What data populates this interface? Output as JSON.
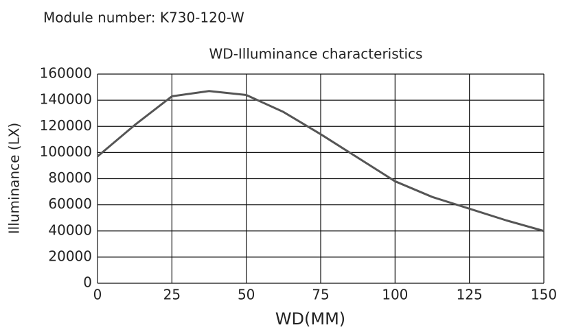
{
  "header": {
    "module_number": "Module number: K730-120-W"
  },
  "chart_data": {
    "type": "line",
    "title": "WD-Illuminance characteristics",
    "x_label": "WD(MM)",
    "y_label": "Illuminance (LX)",
    "x": [
      0,
      12.5,
      25,
      37.5,
      50,
      62.5,
      75,
      87.5,
      100,
      112.5,
      125,
      137.5,
      150
    ],
    "series": [
      {
        "name": "Illuminance",
        "color": "#555555",
        "values": [
          97000,
          121000,
          143000,
          147000,
          144000,
          131000,
          114000,
          96000,
          78000,
          66000,
          57000,
          48000,
          40000
        ]
      }
    ],
    "xlim": [
      0,
      150
    ],
    "xticks": [
      0,
      25,
      50,
      75,
      100,
      125,
      150
    ],
    "ylim": [
      0,
      160000
    ],
    "yticks": [
      0,
      20000,
      40000,
      60000,
      80000,
      100000,
      120000,
      140000,
      160000
    ],
    "grid": true
  }
}
